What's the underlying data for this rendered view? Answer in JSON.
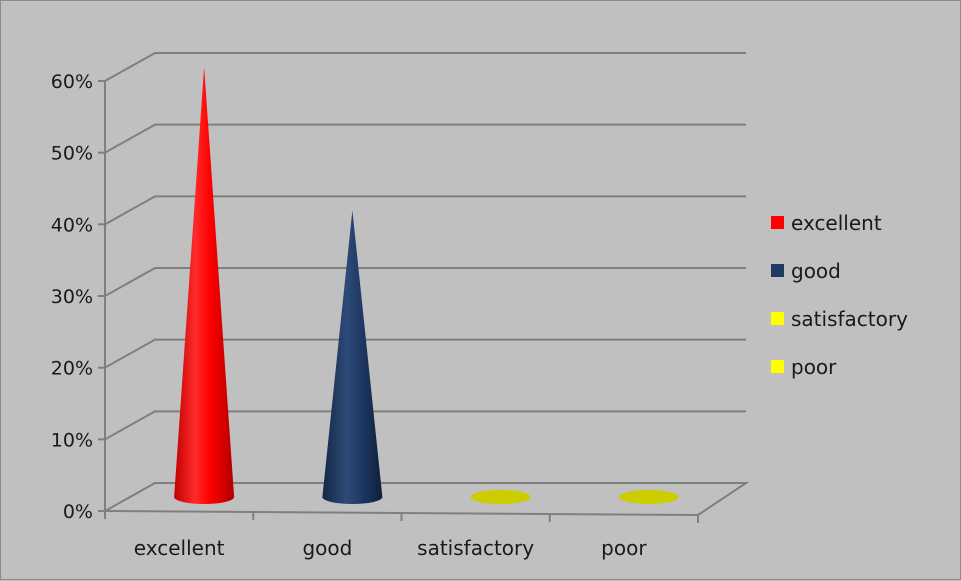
{
  "chart_data": {
    "type": "bar",
    "style": "3d-cone",
    "categories": [
      "excellent",
      "good",
      "satisfactory",
      "poor"
    ],
    "values": [
      60,
      40,
      0,
      0
    ],
    "unit": "%",
    "yticks": [
      "0%",
      "10%",
      "20%",
      "30%",
      "40%",
      "50%",
      "60%"
    ],
    "ylim": [
      0,
      60
    ],
    "grid": true,
    "legend_position": "right",
    "legend": [
      {
        "label": "excellent",
        "color": "#ff0000"
      },
      {
        "label": "good",
        "color": "#1f3864"
      },
      {
        "label": "satisfactory",
        "color": "#ffff00"
      },
      {
        "label": "poor",
        "color": "#ffff00"
      }
    ],
    "colors": [
      "#ff0000",
      "#1f3864",
      "#cccc00",
      "#cccc00"
    ]
  }
}
